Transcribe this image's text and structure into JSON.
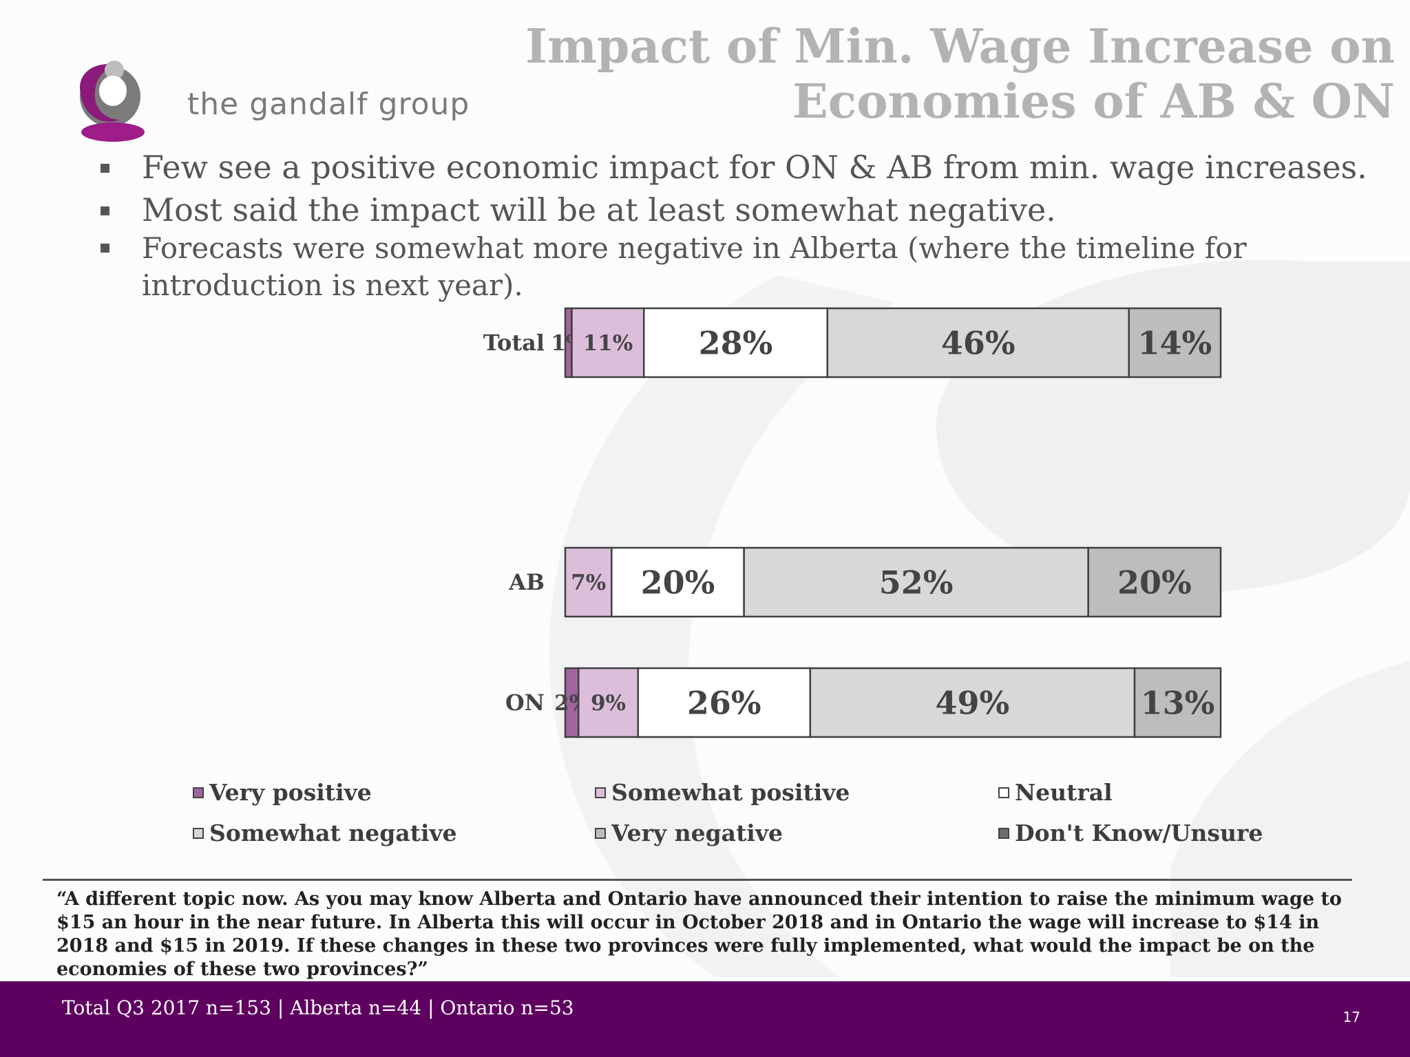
{
  "header": {
    "brand_name": "the gandalf group",
    "title_line1": "Impact of Min. Wage Increase on",
    "title_line2": "Economies of AB & ON"
  },
  "bullets": [
    "Few see a positive economic impact for ON & AB from min. wage increases.",
    "Most said the impact will be at least somewhat negative.",
    "Forecasts were somewhat more negative in Alberta (where the timeline for introduction is next year)."
  ],
  "colors": {
    "very_positive": "#a0659f",
    "somewhat_positive": "#dcbedb",
    "neutral": "#ffffff",
    "somewhat_negative": "#d8d7da",
    "very_negative": "#bdbcbf",
    "dont_know": "#6e6e6e",
    "footer_bg": "#5e0060"
  },
  "chart_data": {
    "type": "bar",
    "orientation": "horizontal",
    "stacked": true,
    "categories": [
      "Total",
      "AB",
      "ON"
    ],
    "series": [
      {
        "name": "Very positive",
        "values": [
          1,
          0,
          2
        ],
        "labels": [
          "1%",
          "",
          "2%"
        ]
      },
      {
        "name": "Somewhat positive",
        "values": [
          11,
          7,
          9
        ],
        "labels": [
          "11%",
          "7%",
          "9%"
        ]
      },
      {
        "name": "Neutral",
        "values": [
          28,
          20,
          26
        ],
        "labels": [
          "28%",
          "20%",
          "26%"
        ]
      },
      {
        "name": "Somewhat negative",
        "values": [
          46,
          52,
          49
        ],
        "labels": [
          "46%",
          "52%",
          "49%"
        ]
      },
      {
        "name": "Very negative",
        "values": [
          14,
          20,
          13
        ],
        "labels": [
          "14%",
          "20%",
          "13%"
        ]
      },
      {
        "name": "Don't Know/Unsure",
        "values": [
          0,
          0,
          0
        ],
        "labels": [
          "",
          "",
          ""
        ]
      }
    ],
    "legend_position": "bottom",
    "grid": false
  },
  "legend": [
    "Very positive",
    "Somewhat positive",
    "Neutral",
    "Somewhat negative",
    "Very negative",
    "Don't Know/Unsure"
  ],
  "question": "“A different topic now. As you may know Alberta and Ontario have announced their intention to raise the minimum wage to $15 an hour in the near future. In Alberta this will occur in October 2018 and in Ontario the wage will increase to $14 in 2018 and $15 in 2019. If these changes in these two provinces were fully implemented, what would the impact be on the economies of these two provinces?”",
  "footer": {
    "sample_note": "Total Q3 2017 n=153 | Alberta n=44 | Ontario n=53",
    "page_number": "17"
  }
}
